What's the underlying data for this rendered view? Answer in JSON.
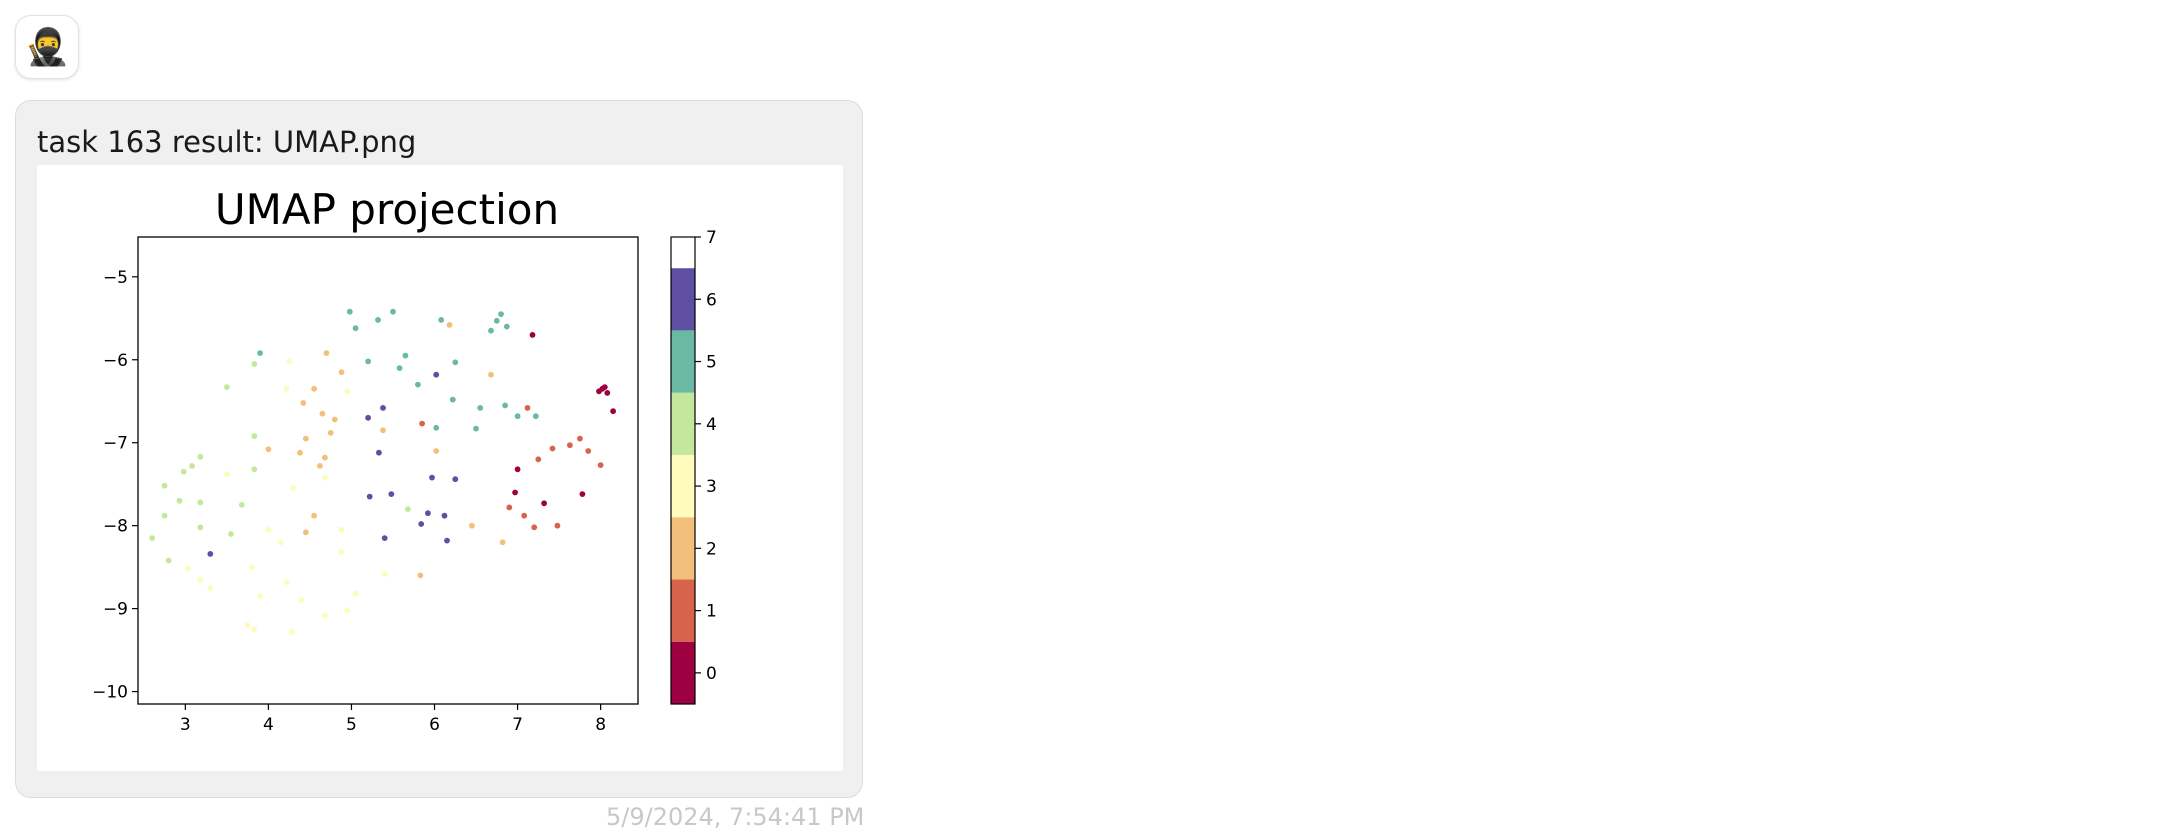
{
  "avatar": {
    "icon": "ninja-icon",
    "glyph": "🥷"
  },
  "message": {
    "title": "task 163 result: UMAP.png",
    "timestamp": "5/9/2024, 7:54:41 PM"
  },
  "chart_data": {
    "type": "scatter",
    "title": "UMAP projection",
    "xlabel": "",
    "ylabel": "",
    "xlim": [
      2.43,
      8.45
    ],
    "ylim": [
      -10.15,
      -4.52
    ],
    "xticks": [
      "3",
      "4",
      "5",
      "6",
      "7",
      "8"
    ],
    "xtick_values": [
      3,
      4,
      5,
      6,
      7,
      8
    ],
    "yticks": [
      "−5",
      "−6",
      "−7",
      "−8",
      "−9",
      "−10"
    ],
    "ytick_values": [
      -5,
      -6,
      -7,
      -8,
      -9,
      -10
    ],
    "grid": false,
    "colormap": "Spectral",
    "colorbar": {
      "ticks": [
        "0",
        "1",
        "2",
        "3",
        "4",
        "5",
        "6",
        "7"
      ],
      "tick_values": [
        0,
        1,
        2,
        3,
        4,
        5,
        6,
        7
      ],
      "colors": [
        "#9e0142",
        "#d8634c",
        "#f3c07c",
        "#fefbbd",
        "#c4e79e",
        "#6abaa3",
        "#5e4fa2",
        "#ffffff"
      ]
    },
    "points": [
      {
        "x": 2.6,
        "y": -8.15,
        "c": 4
      },
      {
        "x": 2.75,
        "y": -7.88,
        "c": 4
      },
      {
        "x": 2.8,
        "y": -8.42,
        "c": 4
      },
      {
        "x": 2.75,
        "y": -7.52,
        "c": 4
      },
      {
        "x": 2.93,
        "y": -7.7,
        "c": 4
      },
      {
        "x": 2.98,
        "y": -7.35,
        "c": 4
      },
      {
        "x": 3.08,
        "y": -7.28,
        "c": 4
      },
      {
        "x": 3.18,
        "y": -7.17,
        "c": 4
      },
      {
        "x": 3.18,
        "y": -7.72,
        "c": 4
      },
      {
        "x": 3.18,
        "y": -8.02,
        "c": 4
      },
      {
        "x": 3.03,
        "y": -8.52,
        "c": 3
      },
      {
        "x": 3.18,
        "y": -8.65,
        "c": 3
      },
      {
        "x": 3.3,
        "y": -8.75,
        "c": 3
      },
      {
        "x": 3.3,
        "y": -8.34,
        "c": 6
      },
      {
        "x": 3.5,
        "y": -7.38,
        "c": 3
      },
      {
        "x": 3.5,
        "y": -6.33,
        "c": 4
      },
      {
        "x": 3.55,
        "y": -8.1,
        "c": 4
      },
      {
        "x": 3.68,
        "y": -7.75,
        "c": 4
      },
      {
        "x": 3.83,
        "y": -7.32,
        "c": 4
      },
      {
        "x": 3.83,
        "y": -6.92,
        "c": 4
      },
      {
        "x": 3.83,
        "y": -6.05,
        "c": 4
      },
      {
        "x": 3.9,
        "y": -5.92,
        "c": 5
      },
      {
        "x": 3.75,
        "y": -9.2,
        "c": 3
      },
      {
        "x": 3.83,
        "y": -9.25,
        "c": 3
      },
      {
        "x": 3.9,
        "y": -8.85,
        "c": 3
      },
      {
        "x": 3.8,
        "y": -8.5,
        "c": 3
      },
      {
        "x": 4.0,
        "y": -8.05,
        "c": 3
      },
      {
        "x": 4.0,
        "y": -7.08,
        "c": 2
      },
      {
        "x": 4.15,
        "y": -8.2,
        "c": 3
      },
      {
        "x": 4.22,
        "y": -8.68,
        "c": 3
      },
      {
        "x": 4.22,
        "y": -6.35,
        "c": 3
      },
      {
        "x": 4.25,
        "y": -6.02,
        "c": 3
      },
      {
        "x": 4.3,
        "y": -7.55,
        "c": 3
      },
      {
        "x": 4.28,
        "y": -9.28,
        "c": 3
      },
      {
        "x": 4.38,
        "y": -7.12,
        "c": 2
      },
      {
        "x": 4.42,
        "y": -6.52,
        "c": 2
      },
      {
        "x": 4.45,
        "y": -6.95,
        "c": 2
      },
      {
        "x": 4.45,
        "y": -8.08,
        "c": 2
      },
      {
        "x": 4.4,
        "y": -8.9,
        "c": 3
      },
      {
        "x": 4.55,
        "y": -6.35,
        "c": 2
      },
      {
        "x": 4.55,
        "y": -7.88,
        "c": 2
      },
      {
        "x": 4.62,
        "y": -7.28,
        "c": 2
      },
      {
        "x": 4.65,
        "y": -6.65,
        "c": 2
      },
      {
        "x": 4.68,
        "y": -7.42,
        "c": 3
      },
      {
        "x": 4.68,
        "y": -7.18,
        "c": 2
      },
      {
        "x": 4.68,
        "y": -9.08,
        "c": 3
      },
      {
        "x": 4.7,
        "y": -5.92,
        "c": 2
      },
      {
        "x": 4.75,
        "y": -6.88,
        "c": 2
      },
      {
        "x": 4.8,
        "y": -6.72,
        "c": 2
      },
      {
        "x": 4.88,
        "y": -6.15,
        "c": 2
      },
      {
        "x": 4.88,
        "y": -8.32,
        "c": 3
      },
      {
        "x": 4.88,
        "y": -8.05,
        "c": 3
      },
      {
        "x": 4.95,
        "y": -6.38,
        "c": 3
      },
      {
        "x": 4.95,
        "y": -9.02,
        "c": 3
      },
      {
        "x": 5.05,
        "y": -8.82,
        "c": 3
      },
      {
        "x": 4.98,
        "y": -5.42,
        "c": 5
      },
      {
        "x": 5.05,
        "y": -5.62,
        "c": 5
      },
      {
        "x": 5.2,
        "y": -6.7,
        "c": 6
      },
      {
        "x": 5.2,
        "y": -6.02,
        "c": 5
      },
      {
        "x": 5.22,
        "y": -7.65,
        "c": 6
      },
      {
        "x": 5.32,
        "y": -5.52,
        "c": 5
      },
      {
        "x": 5.33,
        "y": -7.12,
        "c": 6
      },
      {
        "x": 5.38,
        "y": -6.58,
        "c": 6
      },
      {
        "x": 5.38,
        "y": -6.85,
        "c": 2
      },
      {
        "x": 5.4,
        "y": -8.15,
        "c": 6
      },
      {
        "x": 5.4,
        "y": -8.58,
        "c": 3
      },
      {
        "x": 5.48,
        "y": -7.62,
        "c": 6
      },
      {
        "x": 5.5,
        "y": -5.42,
        "c": 5
      },
      {
        "x": 5.58,
        "y": -6.1,
        "c": 5
      },
      {
        "x": 5.65,
        "y": -5.95,
        "c": 5
      },
      {
        "x": 5.68,
        "y": -7.8,
        "c": 4
      },
      {
        "x": 5.8,
        "y": -6.3,
        "c": 5
      },
      {
        "x": 5.83,
        "y": -8.6,
        "c": 2
      },
      {
        "x": 5.85,
        "y": -6.77,
        "c": 1
      },
      {
        "x": 5.84,
        "y": -7.98,
        "c": 6
      },
      {
        "x": 5.92,
        "y": -7.85,
        "c": 6
      },
      {
        "x": 5.97,
        "y": -7.42,
        "c": 6
      },
      {
        "x": 6.02,
        "y": -6.18,
        "c": 6
      },
      {
        "x": 6.02,
        "y": -6.82,
        "c": 5
      },
      {
        "x": 6.02,
        "y": -7.1,
        "c": 2
      },
      {
        "x": 6.08,
        "y": -5.52,
        "c": 5
      },
      {
        "x": 6.12,
        "y": -7.88,
        "c": 6
      },
      {
        "x": 6.15,
        "y": -8.18,
        "c": 6
      },
      {
        "x": 6.18,
        "y": -5.58,
        "c": 2
      },
      {
        "x": 6.22,
        "y": -6.48,
        "c": 5
      },
      {
        "x": 6.25,
        "y": -6.03,
        "c": 5
      },
      {
        "x": 6.25,
        "y": -7.44,
        "c": 6
      },
      {
        "x": 6.45,
        "y": -8.0,
        "c": 2
      },
      {
        "x": 6.5,
        "y": -6.83,
        "c": 5
      },
      {
        "x": 6.55,
        "y": -6.58,
        "c": 5
      },
      {
        "x": 6.68,
        "y": -6.18,
        "c": 2
      },
      {
        "x": 6.68,
        "y": -5.65,
        "c": 5
      },
      {
        "x": 6.75,
        "y": -5.53,
        "c": 5
      },
      {
        "x": 6.8,
        "y": -5.45,
        "c": 5
      },
      {
        "x": 6.82,
        "y": -8.2,
        "c": 2
      },
      {
        "x": 6.85,
        "y": -6.55,
        "c": 5
      },
      {
        "x": 6.87,
        "y": -5.6,
        "c": 5
      },
      {
        "x": 6.9,
        "y": -7.78,
        "c": 1
      },
      {
        "x": 6.97,
        "y": -7.6,
        "c": 0
      },
      {
        "x": 7.0,
        "y": -7.32,
        "c": 0
      },
      {
        "x": 7.0,
        "y": -6.68,
        "c": 5
      },
      {
        "x": 7.08,
        "y": -7.88,
        "c": 1
      },
      {
        "x": 7.12,
        "y": -6.58,
        "c": 1
      },
      {
        "x": 7.18,
        "y": -5.7,
        "c": 0
      },
      {
        "x": 7.2,
        "y": -8.02,
        "c": 1
      },
      {
        "x": 7.22,
        "y": -6.68,
        "c": 5
      },
      {
        "x": 7.25,
        "y": -7.2,
        "c": 1
      },
      {
        "x": 7.32,
        "y": -7.73,
        "c": 0
      },
      {
        "x": 7.42,
        "y": -7.07,
        "c": 1
      },
      {
        "x": 7.48,
        "y": -8.0,
        "c": 1
      },
      {
        "x": 7.63,
        "y": -7.03,
        "c": 1
      },
      {
        "x": 7.75,
        "y": -6.95,
        "c": 1
      },
      {
        "x": 7.78,
        "y": -7.62,
        "c": 0
      },
      {
        "x": 7.85,
        "y": -7.1,
        "c": 1
      },
      {
        "x": 7.98,
        "y": -6.38,
        "c": 0
      },
      {
        "x": 8.02,
        "y": -6.35,
        "c": 0
      },
      {
        "x": 8.05,
        "y": -6.33,
        "c": 0
      },
      {
        "x": 8.08,
        "y": -6.4,
        "c": 0
      },
      {
        "x": 8.15,
        "y": -6.62,
        "c": 0
      },
      {
        "x": 8.0,
        "y": -7.27,
        "c": 1
      }
    ]
  }
}
